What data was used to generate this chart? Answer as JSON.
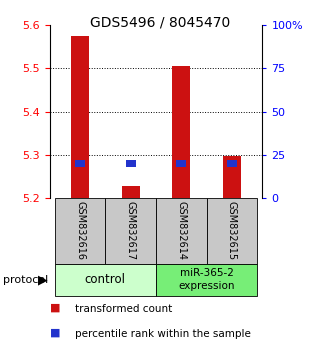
{
  "title": "GDS5496 / 8045470",
  "samples": [
    "GSM832616",
    "GSM832617",
    "GSM832614",
    "GSM832615"
  ],
  "red_values": [
    5.575,
    5.228,
    5.505,
    5.298
  ],
  "blue_values_pct": [
    20,
    20,
    20,
    20
  ],
  "ylim_left": [
    5.2,
    5.6
  ],
  "ylim_right": [
    0,
    100
  ],
  "yticks_left": [
    5.2,
    5.3,
    5.4,
    5.5,
    5.6
  ],
  "yticks_right": [
    0,
    25,
    50,
    75,
    100
  ],
  "ytick_labels_right": [
    "0",
    "25",
    "50",
    "75",
    "100%"
  ],
  "bar_color": "#cc1111",
  "blue_color": "#2233cc",
  "bar_width": 0.35,
  "group_control_color": "#ccffcc",
  "group_expr_color": "#77ee77",
  "sample_box_color": "#c8c8c8",
  "protocol_label": "protocol",
  "legend_red": "transformed count",
  "legend_blue": "percentile rank within the sample",
  "background_color": "#ffffff"
}
